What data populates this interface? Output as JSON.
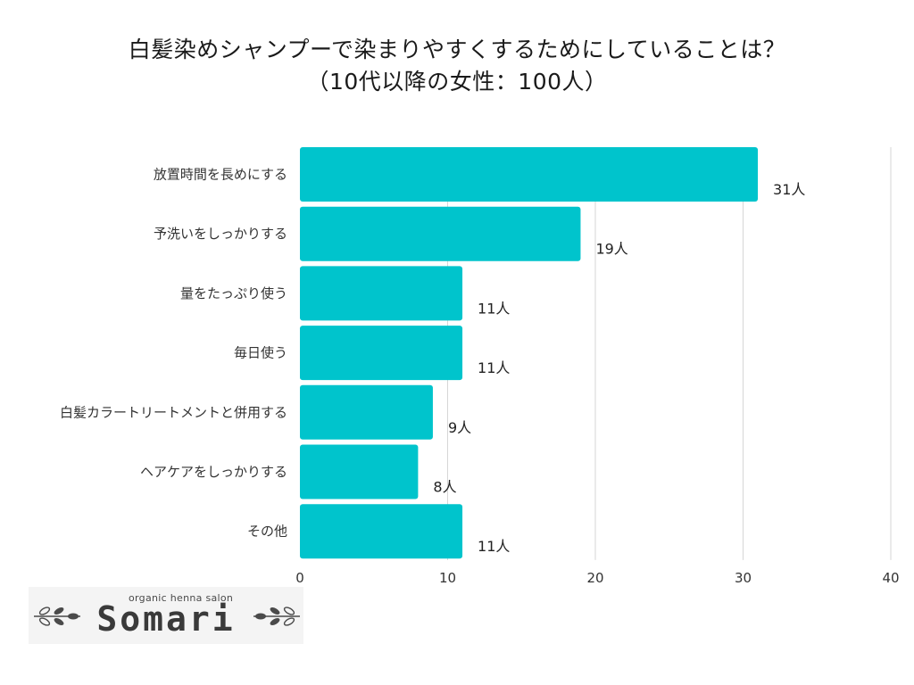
{
  "title": {
    "line1": "白髪染めシャンプーで染まりやすくするためにしていることは？",
    "line2": "（10代以降の女性：100人）"
  },
  "chart_data": {
    "type": "bar",
    "orientation": "horizontal",
    "categories": [
      "放置時間を長めにする",
      "予洗いをしっかりする",
      "量をたっぷり使う",
      "毎日使う",
      "白髪カラートリートメントと併用する",
      "ヘアケアをしっかりする",
      "その他"
    ],
    "values": [
      31,
      19,
      11,
      11,
      9,
      8,
      11
    ],
    "value_labels": [
      "31人",
      "19人",
      "11人",
      "11人",
      "9人",
      "8人",
      "11人"
    ],
    "xlim": [
      0,
      40
    ],
    "xticks": [
      0,
      10,
      20,
      30,
      40
    ],
    "xtick_labels": [
      "0",
      "10",
      "20",
      "30",
      "40"
    ],
    "grid": true,
    "bar_color": "#00c4cc",
    "grid_color": "#d6d6d6"
  },
  "logo": {
    "subtitle": "organic henna salon",
    "name": "Somari",
    "leaf_color": "#4a4a4a"
  }
}
